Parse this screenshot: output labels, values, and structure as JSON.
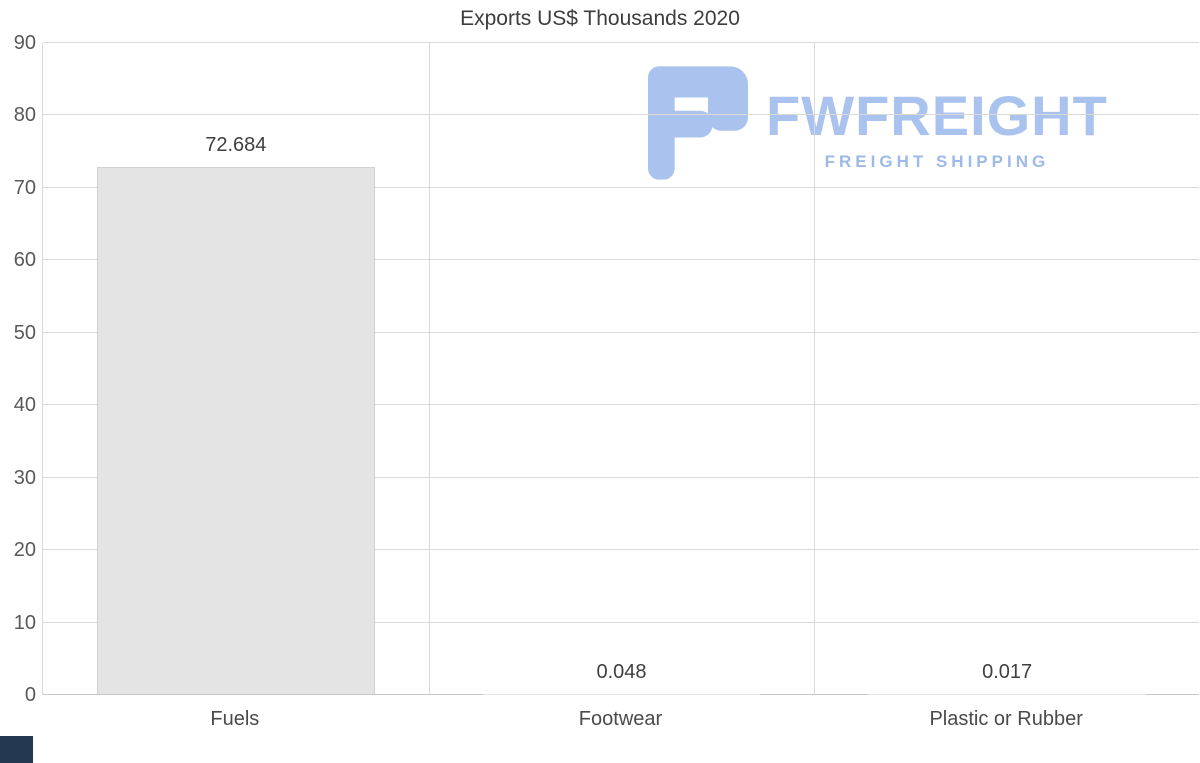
{
  "chart_data": {
    "type": "bar",
    "title": "Exports US$ Thousands 2020",
    "categories": [
      "Fuels",
      "Footwear",
      "Plastic or Rubber"
    ],
    "values": [
      72.684,
      0.048,
      0.017
    ],
    "value_labels": [
      "72.684",
      "0.048",
      "0.017"
    ],
    "xlabel": "",
    "ylabel": "",
    "ylim": [
      0,
      90
    ],
    "yticks": [
      0,
      10,
      20,
      30,
      40,
      50,
      60,
      70,
      80,
      90
    ],
    "grid": true,
    "legend": "none",
    "bar_color": "#e4e4e4"
  },
  "watermark": {
    "brand": "FWFREIGHT",
    "tagline": "FREIGHT SHIPPING",
    "color": "#a9c3ee"
  }
}
